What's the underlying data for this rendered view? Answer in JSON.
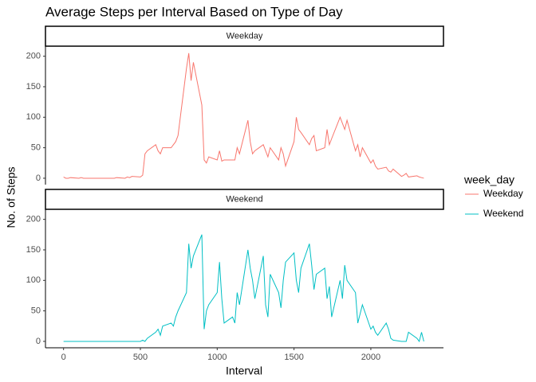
{
  "chart_data": {
    "type": "line",
    "title": "Average Steps per Interval Based on Type of Day",
    "xlabel": "Interval",
    "ylabel": "No. of Steps",
    "legend_title": "week_day",
    "x": [
      0,
      15,
      30,
      45,
      100,
      115,
      130,
      145,
      200,
      215,
      230,
      245,
      300,
      315,
      330,
      345,
      400,
      415,
      430,
      445,
      500,
      515,
      530,
      545,
      600,
      615,
      630,
      645,
      700,
      715,
      730,
      745,
      800,
      815,
      830,
      845,
      900,
      915,
      930,
      945,
      1000,
      1015,
      1030,
      1045,
      1100,
      1115,
      1130,
      1145,
      1200,
      1215,
      1230,
      1245,
      1300,
      1315,
      1330,
      1345,
      1400,
      1415,
      1430,
      1445,
      1500,
      1515,
      1530,
      1545,
      1600,
      1615,
      1630,
      1645,
      1700,
      1715,
      1730,
      1745,
      1800,
      1815,
      1830,
      1845,
      1900,
      1915,
      1930,
      1945,
      2000,
      2015,
      2030,
      2045,
      2100,
      2115,
      2130,
      2145,
      2200,
      2215,
      2230,
      2245,
      2300,
      2315,
      2330,
      2345
    ],
    "series": [
      {
        "name": "Weekday",
        "color": "#f8766d",
        "values": [
          2,
          0,
          0,
          1,
          0,
          1,
          0,
          0,
          0,
          0,
          0,
          0,
          0,
          0,
          0,
          1,
          0,
          2,
          1,
          3,
          2,
          5,
          40,
          45,
          55,
          45,
          40,
          50,
          50,
          55,
          60,
          70,
          180,
          205,
          160,
          190,
          120,
          30,
          25,
          35,
          30,
          45,
          28,
          30,
          30,
          30,
          50,
          40,
          95,
          60,
          40,
          45,
          55,
          45,
          35,
          50,
          30,
          50,
          40,
          20,
          60,
          100,
          80,
          75,
          55,
          65,
          70,
          45,
          50,
          80,
          55,
          65,
          100,
          90,
          80,
          95,
          45,
          55,
          35,
          50,
          25,
          30,
          20,
          15,
          18,
          12,
          10,
          15,
          3,
          5,
          8,
          2,
          4,
          2,
          1,
          0
        ]
      },
      {
        "name": "Weekend",
        "color": "#00bfc4",
        "values": [
          0,
          0,
          0,
          0,
          0,
          0,
          0,
          0,
          0,
          0,
          0,
          0,
          0,
          0,
          0,
          0,
          0,
          0,
          0,
          0,
          0,
          2,
          0,
          5,
          15,
          20,
          10,
          25,
          30,
          25,
          40,
          50,
          80,
          160,
          120,
          140,
          175,
          20,
          50,
          60,
          80,
          130,
          70,
          30,
          40,
          30,
          80,
          60,
          150,
          120,
          100,
          70,
          140,
          60,
          40,
          110,
          80,
          55,
          100,
          130,
          145,
          100,
          80,
          120,
          160,
          125,
          85,
          110,
          120,
          70,
          90,
          40,
          100,
          70,
          125,
          100,
          80,
          30,
          45,
          60,
          20,
          25,
          15,
          10,
          30,
          20,
          5,
          2,
          0,
          0,
          0,
          15,
          5,
          0,
          15,
          0
        ]
      }
    ],
    "xlim": [
      -117.75,
      2472.75
    ],
    "xticks": [
      0,
      500,
      1000,
      1500,
      2000
    ],
    "ylim": [
      -10.5,
      216.5
    ],
    "yticks": [
      0,
      50,
      100,
      150,
      200
    ],
    "legend": "right"
  }
}
